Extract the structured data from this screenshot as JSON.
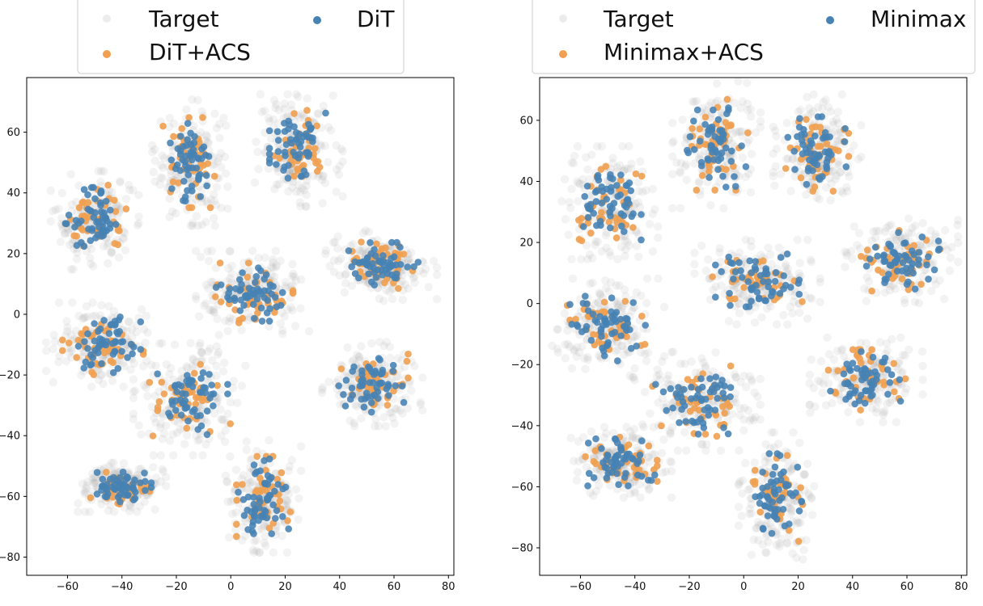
{
  "colors": {
    "target": "#a0a0a0",
    "acs": "#f0a050",
    "base": "#4682b4",
    "frame": "#000000",
    "legend_border": "#cccccc"
  },
  "chart_data": [
    {
      "type": "scatter",
      "title": "",
      "xlabel": "",
      "ylabel": "",
      "xlim": [
        -75,
        82
      ],
      "ylim": [
        -86,
        78
      ],
      "xticks": [
        -60,
        -40,
        -20,
        0,
        20,
        40,
        60,
        80
      ],
      "yticks": [
        -80,
        -60,
        -40,
        -20,
        0,
        20,
        40,
        60
      ],
      "xtick_labels": [
        "−60",
        "−40",
        "−20",
        "0",
        "20",
        "40",
        "60",
        "80"
      ],
      "ytick_labels": [
        "−80",
        "−60",
        "−40",
        "−20",
        "0",
        "20",
        "40",
        "60"
      ],
      "legend": {
        "placement": "upper center, outside top",
        "entries": [
          {
            "label": "Target",
            "series": "target"
          },
          {
            "label": "DiT+ACS",
            "series": "acs"
          },
          {
            "label": "DiT",
            "series": "base"
          }
        ]
      },
      "series": [
        {
          "key": "target",
          "name": "Target"
        },
        {
          "key": "acs",
          "name": "DiT+ACS"
        },
        {
          "key": "base",
          "name": "DiT"
        }
      ],
      "clusters": [
        {
          "cx": -15,
          "cy": 50,
          "sx": 6,
          "sy": 9
        },
        {
          "cx": 25,
          "cy": 54,
          "sx": 7,
          "sy": 8
        },
        {
          "cx": -50,
          "cy": 31,
          "sx": 7,
          "sy": 7
        },
        {
          "cx": 55,
          "cy": 16,
          "sx": 9,
          "sy": 5
        },
        {
          "cx": 8,
          "cy": 7,
          "sx": 9,
          "sy": 6
        },
        {
          "cx": -47,
          "cy": -10,
          "sx": 9,
          "sy": 6
        },
        {
          "cx": 52,
          "cy": -23,
          "sx": 8,
          "sy": 6
        },
        {
          "cx": -15,
          "cy": -28,
          "sx": 9,
          "sy": 8
        },
        {
          "cx": -40,
          "cy": -57,
          "sx": 7,
          "sy": 3.5
        },
        {
          "cx": 12,
          "cy": -60,
          "sx": 6,
          "sy": 8
        }
      ]
    },
    {
      "type": "scatter",
      "title": "",
      "xlabel": "",
      "ylabel": "",
      "xlim": [
        -75,
        82
      ],
      "ylim": [
        -89,
        74
      ],
      "xticks": [
        -60,
        -40,
        -20,
        0,
        20,
        40,
        60,
        80
      ],
      "yticks": [
        -80,
        -60,
        -40,
        -20,
        0,
        20,
        40,
        60
      ],
      "xtick_labels": [
        "−60",
        "−40",
        "−20",
        "0",
        "20",
        "40",
        "60",
        "80"
      ],
      "ytick_labels": [
        "−80",
        "−60",
        "−40",
        "−20",
        "0",
        "20",
        "40",
        "60"
      ],
      "legend": {
        "placement": "upper center, outside top",
        "entries": [
          {
            "label": "Target",
            "series": "target"
          },
          {
            "label": "Minimax+ACS",
            "series": "acs"
          },
          {
            "label": "Minimax",
            "series": "base"
          }
        ]
      },
      "series": [
        {
          "key": "target",
          "name": "Target"
        },
        {
          "key": "acs",
          "name": "Minimax+ACS"
        },
        {
          "key": "base",
          "name": "Minimax"
        }
      ],
      "clusters": [
        {
          "cx": -10,
          "cy": 52,
          "sx": 7,
          "sy": 9
        },
        {
          "cx": 27,
          "cy": 50,
          "sx": 7,
          "sy": 8
        },
        {
          "cx": -50,
          "cy": 33,
          "sx": 8,
          "sy": 8
        },
        {
          "cx": 58,
          "cy": 14,
          "sx": 9,
          "sy": 6
        },
        {
          "cx": 5,
          "cy": 7,
          "sx": 10,
          "sy": 6
        },
        {
          "cx": -50,
          "cy": -8,
          "sx": 9,
          "sy": 7
        },
        {
          "cx": 45,
          "cy": -25,
          "sx": 9,
          "sy": 6
        },
        {
          "cx": -17,
          "cy": -32,
          "sx": 10,
          "sy": 7
        },
        {
          "cx": -45,
          "cy": -52,
          "sx": 8,
          "sy": 5
        },
        {
          "cx": 12,
          "cy": -63,
          "sx": 6,
          "sy": 9
        }
      ]
    }
  ]
}
